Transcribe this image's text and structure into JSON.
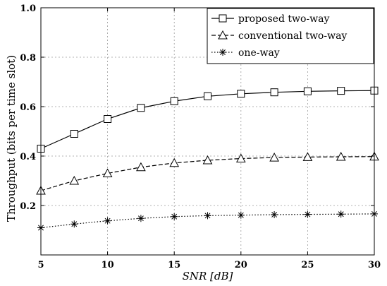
{
  "chart_data": {
    "type": "line",
    "title": "",
    "xlabel": "SNR [dB]",
    "ylabel": "Throughput (bits per time slot)",
    "xlim": [
      5,
      30
    ],
    "ylim": [
      0.0,
      1.0
    ],
    "x_ticks": [
      "5",
      "10",
      "15",
      "20",
      "25",
      "30"
    ],
    "y_ticks": [
      "0.2",
      "0.4",
      "0.6",
      "0.8",
      "1.0"
    ],
    "grid": true,
    "legend_position": "top-right",
    "x": [
      5,
      7.5,
      10,
      12.5,
      15,
      17.5,
      20,
      22.5,
      25,
      27.5,
      30
    ],
    "series": [
      {
        "name": "proposed two-way",
        "marker": "square",
        "line_style": "solid",
        "values": [
          0.43,
          0.49,
          0.55,
          0.595,
          0.622,
          0.642,
          0.652,
          0.658,
          0.662,
          0.664,
          0.665
        ]
      },
      {
        "name": "conventional two-way",
        "marker": "triangle",
        "line_style": "dashed",
        "values": [
          0.26,
          0.3,
          0.33,
          0.355,
          0.372,
          0.383,
          0.39,
          0.394,
          0.396,
          0.397,
          0.398
        ]
      },
      {
        "name": "one-way",
        "marker": "asterisk",
        "line_style": "dotted",
        "values": [
          0.11,
          0.125,
          0.138,
          0.148,
          0.155,
          0.159,
          0.161,
          0.163,
          0.164,
          0.165,
          0.166
        ]
      }
    ]
  }
}
